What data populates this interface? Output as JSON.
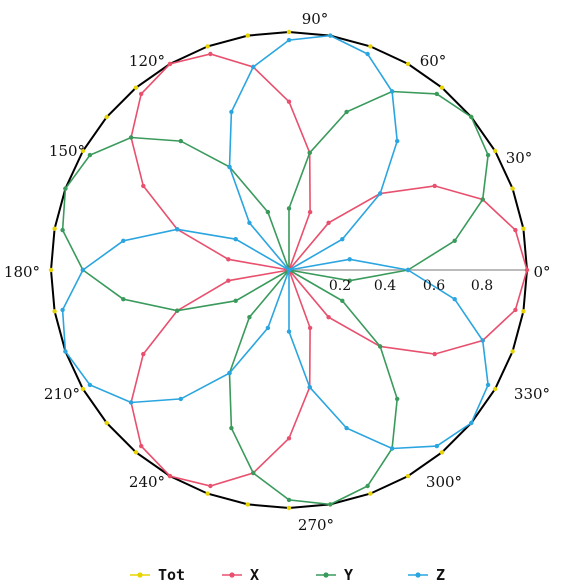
{
  "chart_data": {
    "type": "polar-line",
    "angle_unit": "degrees",
    "angular_ticks": [
      "0°",
      "30°",
      "60°",
      "90°",
      "120°",
      "150°",
      "180°",
      "210°",
      "240°",
      "270°",
      "300°",
      "330°"
    ],
    "radial_ticks": [
      "0.2",
      "0.4",
      "0.6",
      "0.8"
    ],
    "rlim": [
      0,
      1
    ],
    "grid": false,
    "legend_position": "bottom",
    "colors": {
      "Tot": "#e8d400",
      "X": "#e8506e",
      "Y": "#3a9a5c",
      "Z": "#2aa5e0",
      "frame": "#000000",
      "radial_axis": "#bbbbbb"
    },
    "series": [
      {
        "name": "Tot",
        "formula": "r = 1.0 (constant)",
        "step_deg": 10,
        "r0": 1.0,
        "ampl": 0,
        "phase_deg": 0
      },
      {
        "name": "X",
        "formula": "r = |cos(1.5·(θ − 0°))|",
        "step_deg": 10,
        "r0": 0,
        "ampl": 1,
        "phase_deg": 0
      },
      {
        "name": "Y",
        "formula": "r = |cos(1.5·(θ − 40°))|",
        "step_deg": 10,
        "r0": 0,
        "ampl": 1,
        "phase_deg": 40
      },
      {
        "name": "Z",
        "formula": "r = |cos(1.5·(θ − 80°))|",
        "step_deg": 10,
        "r0": 0,
        "ampl": 1,
        "phase_deg": 80
      }
    ]
  }
}
